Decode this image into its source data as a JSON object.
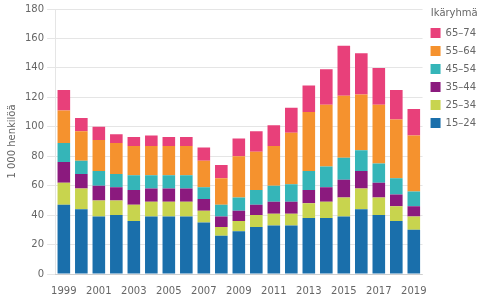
{
  "chart_data": {
    "type": "bar",
    "stacked": true,
    "y_label": "1 000 henkilöä",
    "legend_title": "Ikäryhmä",
    "legend": "right",
    "grid": true,
    "categories": [
      "1999",
      null,
      "2001",
      null,
      "2003",
      null,
      "2005",
      null,
      "2007",
      null,
      "2009",
      null,
      "2011",
      null,
      "2013",
      null,
      "2015",
      null,
      "2017",
      null,
      "2019"
    ],
    "series": [
      {
        "name": "15–24",
        "color": "#1a6fab",
        "values": [
          47,
          44,
          39,
          40,
          36,
          39,
          39,
          39,
          35,
          26,
          29,
          32,
          33,
          33,
          38,
          38,
          39,
          44,
          40,
          36,
          30
        ]
      },
      {
        "name": "25–34",
        "color": "#c8d44e",
        "values": [
          15,
          14,
          11,
          10,
          11,
          10,
          10,
          10,
          8,
          6,
          7,
          8,
          8,
          8,
          10,
          11,
          13,
          14,
          12,
          10,
          9
        ]
      },
      {
        "name": "35–44",
        "color": "#8b1a7e",
        "values": [
          14,
          10,
          10,
          9,
          10,
          9,
          9,
          9,
          8,
          7,
          7,
          7,
          8,
          8,
          9,
          10,
          12,
          12,
          10,
          8,
          7
        ]
      },
      {
        "name": "45–54",
        "color": "#35b5b8",
        "values": [
          13,
          9,
          10,
          9,
          10,
          9,
          9,
          9,
          8,
          8,
          9,
          10,
          11,
          12,
          13,
          14,
          15,
          14,
          13,
          11,
          10
        ]
      },
      {
        "name": "55–64",
        "color": "#f5922e",
        "values": [
          22,
          20,
          21,
          21,
          20,
          20,
          20,
          20,
          18,
          18,
          28,
          26,
          27,
          35,
          40,
          42,
          42,
          38,
          40,
          40,
          38
        ]
      },
      {
        "name": "65–74",
        "color": "#e8407a",
        "values": [
          14,
          9,
          9,
          6,
          6,
          7,
          6,
          6,
          9,
          9,
          12,
          14,
          14,
          17,
          18,
          24,
          34,
          28,
          25,
          20,
          18
        ]
      }
    ],
    "ylim": [
      0,
      180
    ],
    "yticks": [
      0,
      20,
      40,
      60,
      80,
      100,
      120,
      140,
      160,
      180
    ]
  }
}
